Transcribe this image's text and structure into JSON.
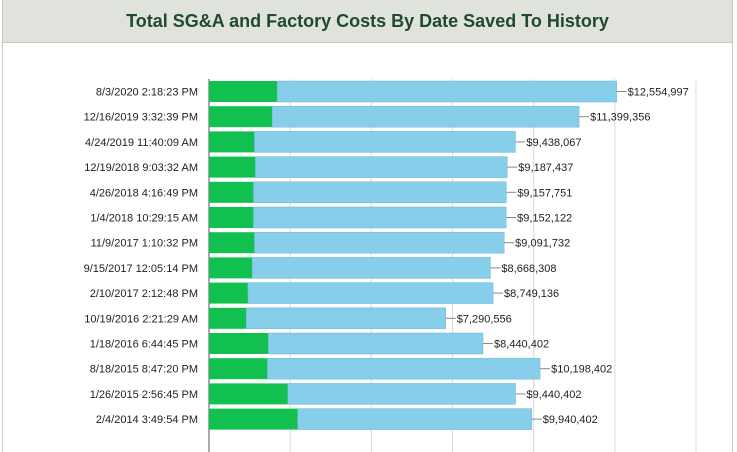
{
  "title": "Total SG&A and Factory Costs By Date Saved To History",
  "chart_data": {
    "type": "bar",
    "orientation": "horizontal",
    "stacked": true,
    "title": "Total SG&A and Factory Costs By Date Saved To History",
    "xlim": [
      0,
      15000000
    ],
    "grid": true,
    "categories": [
      "8/3/2020 2:18:23 PM",
      "12/16/2019 3:32:39 PM",
      "4/24/2019 11:40:09 AM",
      "12/19/2018 9:03:32 AM",
      "4/26/2018 4:16:49 PM",
      "1/4/2018 10:29:15 AM",
      "11/9/2017 1:10:32 PM",
      "9/15/2017 12:05:14 PM",
      "2/10/2017 2:12:48 PM",
      "10/19/2016 2:21:29 AM",
      "1/18/2016 6:44:45 PM",
      "8/18/2015 8:47:20 PM",
      "1/26/2015 2:56:45 PM",
      "2/4/2014 3:49:54 PM"
    ],
    "series": [
      {
        "color": "#12c04f",
        "values": [
          2100000,
          1950000,
          1400000,
          1430000,
          1370000,
          1370000,
          1400000,
          1330000,
          1200000,
          1150000,
          1830000,
          1800000,
          2430000,
          2730000
        ]
      },
      {
        "color": "#87ceeb",
        "values": [
          10454997,
          9449356,
          8038067,
          7757437,
          7787751,
          7782122,
          7691732,
          7338308,
          7549136,
          6140556,
          6610402,
          8398402,
          7010402,
          7210402
        ]
      }
    ],
    "totals": [
      12554997,
      11399356,
      9438067,
      9187437,
      9157751,
      9152122,
      9091732,
      8668308,
      8749136,
      7290556,
      8440402,
      10198402,
      9440402,
      9940402
    ],
    "total_labels": [
      "$12,554,997",
      "$11,399,356",
      "$9,438,067",
      "$9,187,437",
      "$9,157,751",
      "$9,152,122",
      "$9,091,732",
      "$8,668,308",
      "$8,749,136",
      "$7,290,556",
      "$8,440,402",
      "$10,198,402",
      "$9,440,402",
      "$9,940,402"
    ]
  }
}
